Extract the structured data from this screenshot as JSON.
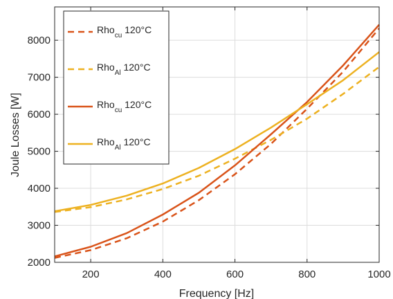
{
  "chart_data": {
    "type": "line",
    "title": "",
    "xlabel": "Frequency [Hz]",
    "ylabel": "Joule Losses [W]",
    "xlim": [
      100,
      1000
    ],
    "ylim": [
      2000,
      8900
    ],
    "xticks": [
      200,
      400,
      600,
      800,
      1000
    ],
    "yticks": [
      2000,
      3000,
      4000,
      5000,
      6000,
      7000,
      8000
    ],
    "grid": true,
    "legend_position": "top-left",
    "colors": {
      "cu": "#D95319",
      "al": "#EDB120",
      "axis": "#262626",
      "grid": "#dcdcdc"
    },
    "x": [
      100,
      200,
      300,
      400,
      500,
      600,
      700,
      800,
      900,
      1000
    ],
    "series": [
      {
        "name": "Rho_cu 120°C",
        "legend_base": "Rho",
        "legend_sub": "cu",
        "legend_suffix": " 120°C",
        "color": "#D95319",
        "dash": "dashed",
        "values": [
          2120,
          2330,
          2650,
          3100,
          3680,
          4380,
          5200,
          6150,
          7150,
          8320
        ]
      },
      {
        "name": "Rho_Al 120°C",
        "legend_base": "Rho",
        "legend_sub": "Al",
        "legend_suffix": " 120°C",
        "color": "#EDB120",
        "dash": "dashed",
        "values": [
          3360,
          3490,
          3700,
          3980,
          4340,
          4800,
          5310,
          5880,
          6550,
          7280
        ]
      },
      {
        "name": "Rho_cu 120°C",
        "legend_base": "Rho",
        "legend_sub": "cu",
        "legend_suffix": " 120°C",
        "color": "#D95319",
        "dash": "solid",
        "values": [
          2160,
          2420,
          2790,
          3290,
          3880,
          4620,
          5460,
          6330,
          7320,
          8420
        ]
      },
      {
        "name": "Rho_Al 120°C",
        "legend_base": "Rho",
        "legend_sub": "Al",
        "legend_suffix": " 120°C",
        "color": "#EDB120",
        "dash": "solid",
        "values": [
          3380,
          3550,
          3800,
          4130,
          4550,
          5060,
          5640,
          6270,
          6920,
          7680
        ]
      }
    ]
  }
}
